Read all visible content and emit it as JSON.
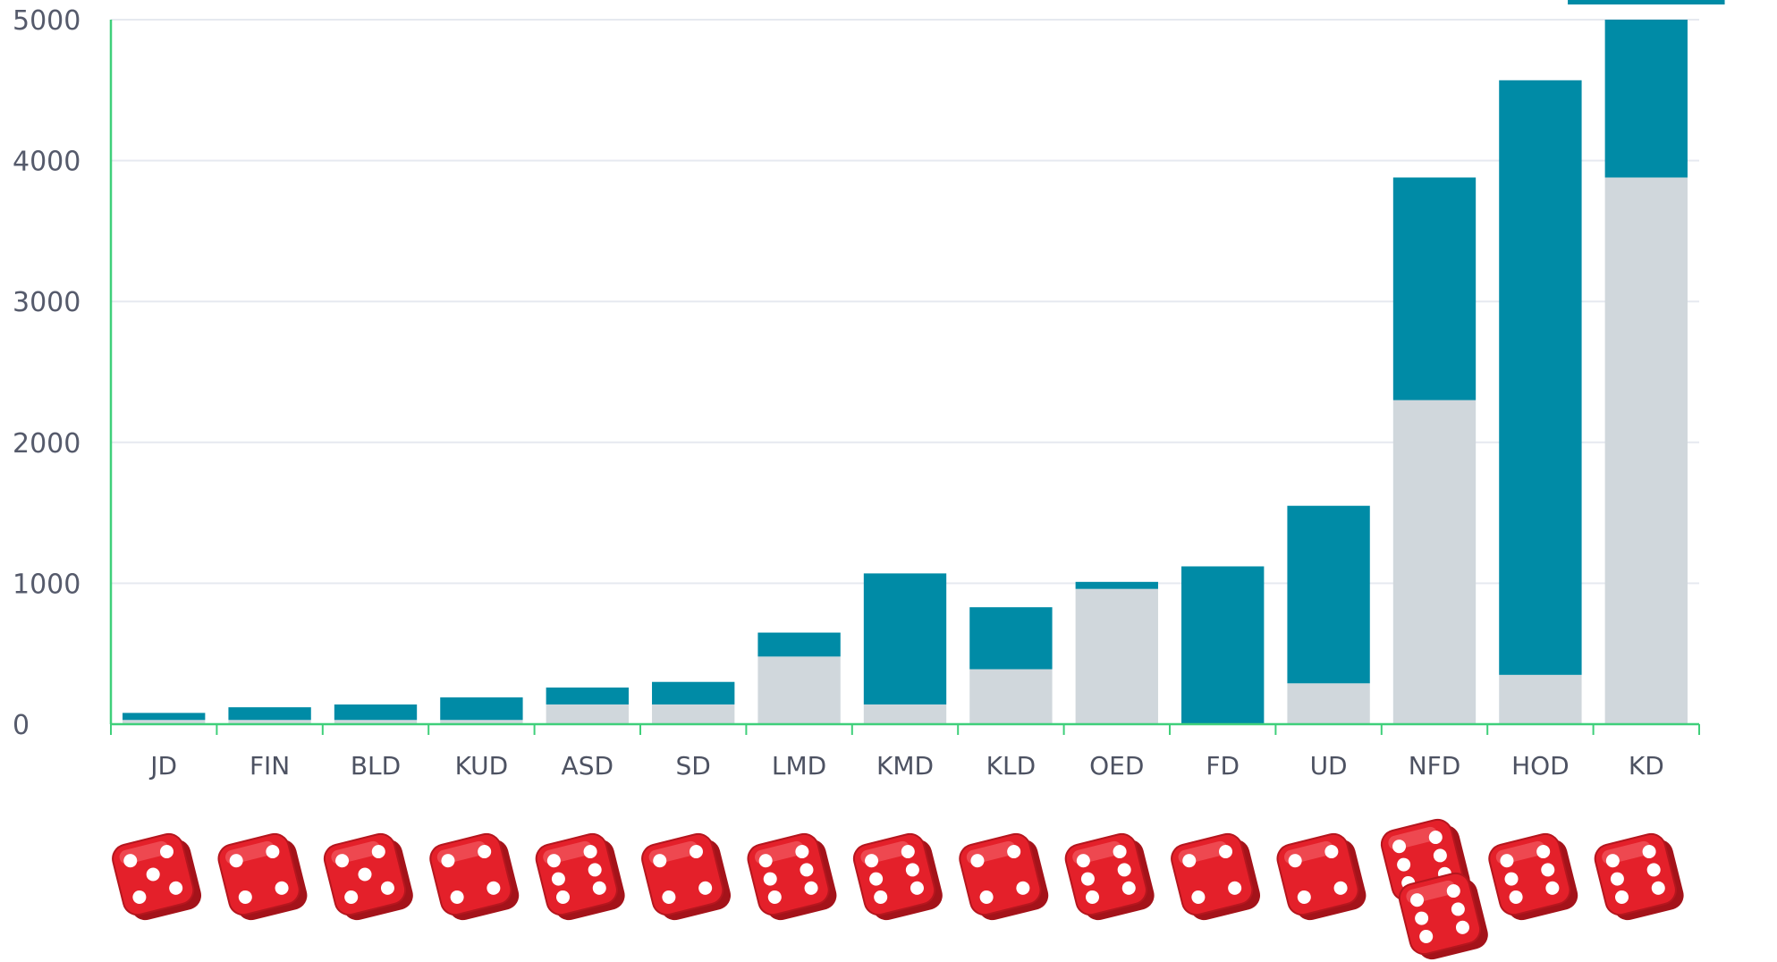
{
  "chart_data": {
    "type": "bar",
    "stacked": true,
    "title": "",
    "xlabel": "",
    "ylabel": "",
    "ylim": [
      0,
      5000
    ],
    "yticks": [
      0,
      1000,
      2000,
      3000,
      4000,
      5000
    ],
    "grid": true,
    "legend": "none",
    "categories": [
      "JD",
      "FIN",
      "BLD",
      "KUD",
      "ASD",
      "SD",
      "LMD",
      "KMD",
      "KLD",
      "OED",
      "FD",
      "UD",
      "NFD",
      "HOD",
      "KD"
    ],
    "dice_per_category": [
      [
        "5"
      ],
      [
        "4"
      ],
      [
        "5"
      ],
      [
        "4"
      ],
      [
        "6"
      ],
      [
        "4"
      ],
      [
        "6"
      ],
      [
        "6"
      ],
      [
        "4"
      ],
      [
        "6"
      ],
      [
        "4"
      ],
      [
        "4"
      ],
      [
        "6",
        "6"
      ],
      [
        "6"
      ],
      [
        "6"
      ]
    ],
    "truncated_categories": [
      "KD"
    ],
    "series": [
      {
        "values": [
          30,
          30,
          30,
          30,
          140,
          140,
          480,
          140,
          390,
          960,
          0,
          290,
          2300,
          350,
          3880
        ]
      },
      {
        "values": [
          50,
          90,
          110,
          160,
          120,
          160,
          170,
          930,
          440,
          50,
          1120,
          1260,
          1580,
          4220,
          1120
        ]
      }
    ],
    "colors": {
      "series": [
        "#d0d7dc",
        "#008ba6"
      ],
      "grid": "#e6e9f0",
      "axis": "#3fcf7a",
      "tick_text": "#555a6b",
      "die_face": "#e4202a",
      "die_pip": "#ffffff"
    }
  }
}
